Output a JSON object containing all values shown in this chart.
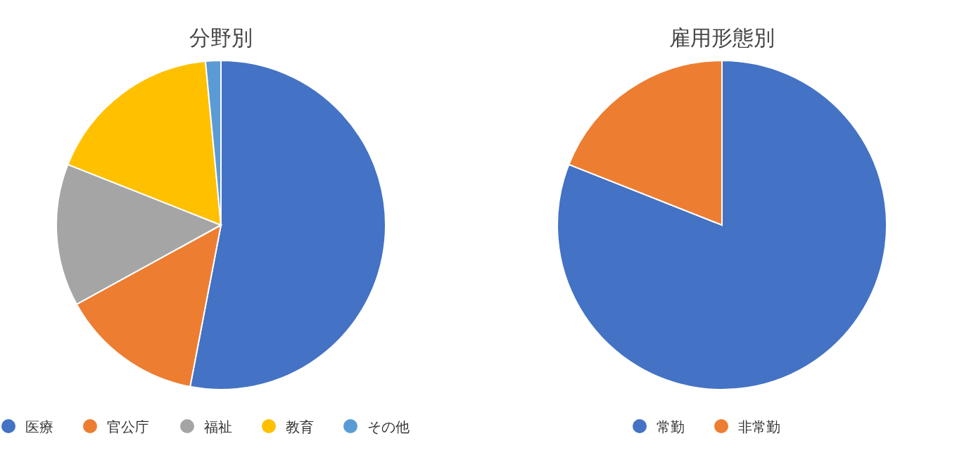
{
  "chart_data": [
    {
      "type": "pie",
      "title": "分野別",
      "categories": [
        "医療",
        "官公庁",
        "福祉",
        "教育",
        "その他"
      ],
      "values": [
        53,
        14,
        14,
        17.5,
        1.5
      ],
      "colors": [
        "#4472c4",
        "#ed7d31",
        "#a5a5a5",
        "#ffc000",
        "#5b9bd5"
      ],
      "legend": "bottom"
    },
    {
      "type": "pie",
      "title": "雇用形態別",
      "categories": [
        "常勤",
        "非常勤"
      ],
      "values": [
        81,
        19
      ],
      "colors": [
        "#4472c4",
        "#ed7d31"
      ],
      "legend": "bottom"
    }
  ]
}
